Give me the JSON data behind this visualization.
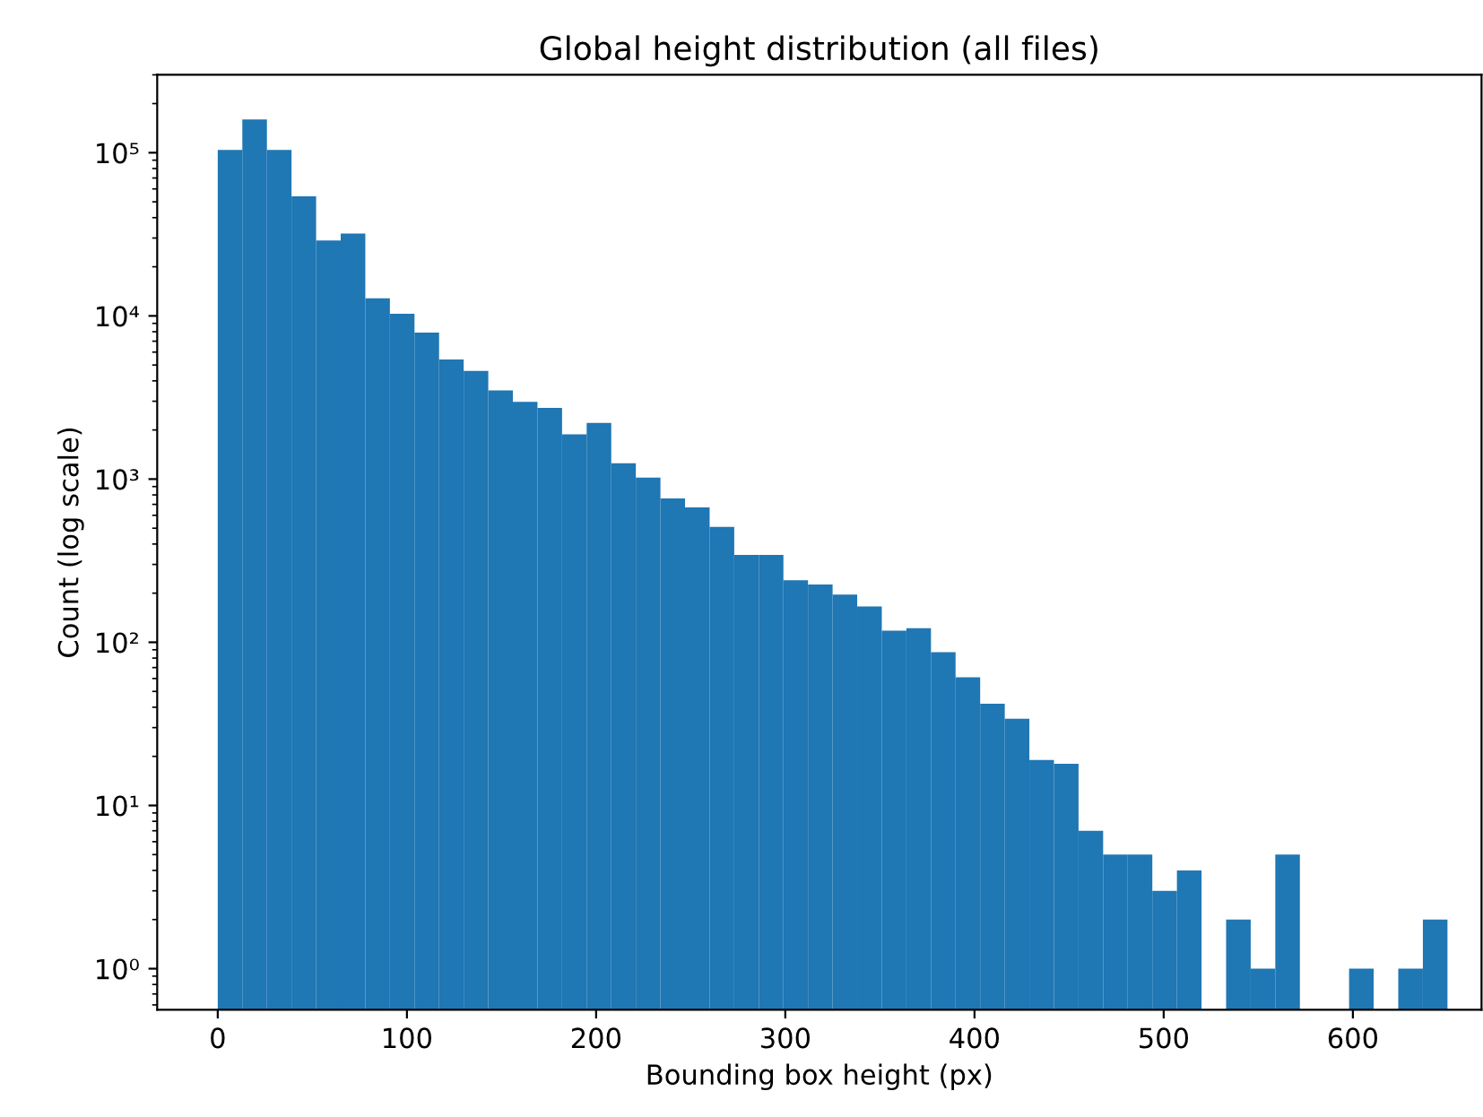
{
  "chart_data": {
    "type": "histogram",
    "title": "Global height distribution (all files)",
    "xlabel": "Bounding box height (px)",
    "ylabel": "Count (log scale)",
    "bins": [
      0,
      13,
      26,
      39,
      52,
      65,
      78,
      91,
      104,
      117,
      130,
      143,
      156,
      169,
      182,
      195,
      208,
      221,
      234,
      247,
      260,
      273,
      286,
      299,
      312,
      325,
      338,
      351,
      364,
      377,
      390,
      403,
      416,
      429,
      442,
      455,
      468,
      481,
      494,
      507,
      520,
      533,
      546,
      559,
      572,
      585,
      598,
      611,
      624,
      637,
      650
    ],
    "values": [
      104000,
      160000,
      104000,
      54000,
      29000,
      32000,
      12800,
      10300,
      7900,
      5400,
      4600,
      3500,
      2970,
      2730,
      1880,
      2210,
      1250,
      1020,
      760,
      670,
      510,
      343,
      343,
      240,
      226,
      196,
      166,
      118,
      122,
      87,
      61,
      42,
      34,
      19,
      18,
      7,
      5,
      5,
      3,
      4,
      null,
      2,
      1,
      5,
      null,
      null,
      1,
      null,
      1,
      2
    ],
    "color": "#1f77b4",
    "log": "y",
    "xlim": [
      -32,
      668
    ],
    "ylim": [
      0.56,
      300000
    ],
    "xticks": [
      0,
      100,
      200,
      300,
      400,
      500,
      600
    ],
    "yticks": [
      {
        "value": 1,
        "label": "10⁰"
      },
      {
        "value": 10,
        "label": "10¹"
      },
      {
        "value": 100,
        "label": "10²"
      },
      {
        "value": 1000,
        "label": "10³"
      },
      {
        "value": 10000,
        "label": "10⁴"
      },
      {
        "value": 100000,
        "label": "10⁵"
      }
    ],
    "grid": false
  }
}
